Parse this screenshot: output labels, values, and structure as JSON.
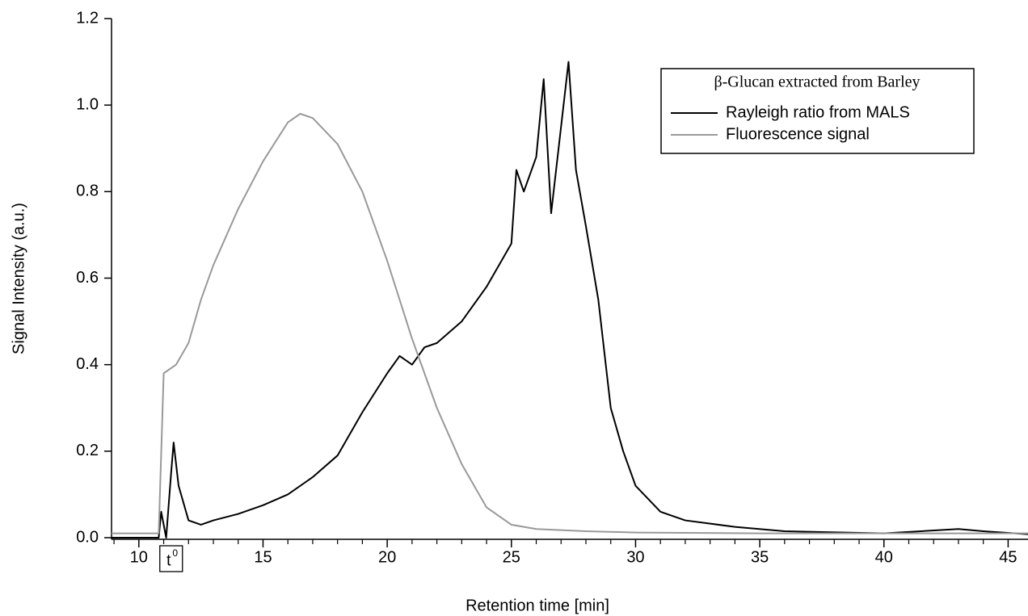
{
  "chart_data": {
    "type": "line",
    "x_label": "Retention time [min]",
    "y_label": "Signal Intensity (a.u.)",
    "legend_title": "β-Glucan extracted from Barley",
    "legend_position": "upper-right",
    "xlim": [
      8.9,
      45.8
    ],
    "ylim": [
      0,
      1.2
    ],
    "xticks": [
      10,
      15,
      20,
      25,
      30,
      35,
      40,
      45
    ],
    "xminorticks": [
      9,
      11,
      12,
      13,
      14,
      16,
      17,
      18,
      19,
      21,
      22,
      23,
      24,
      26,
      27,
      28,
      29,
      31,
      32,
      33,
      34,
      36,
      37,
      38,
      39,
      41,
      42,
      43,
      44
    ],
    "yticks": [
      {
        "value": 0,
        "label": "0.0"
      },
      0.2,
      0.4,
      0.6,
      0.8,
      {
        "value": 1,
        "label": "1.0"
      },
      1.2
    ],
    "annotation": {
      "text": "t",
      "superscript": "0",
      "x": 11.3
    },
    "series": [
      {
        "name": "Rayleigh ratio from MALS",
        "color": "#000000",
        "x": [
          8.9,
          10,
          10.8,
          10.9,
          11.1,
          11.3,
          11.4,
          11.6,
          12,
          12.5,
          13,
          14,
          15,
          16,
          17,
          18,
          19,
          20,
          20.5,
          21,
          21.5,
          22,
          23,
          24,
          25,
          25.2,
          25.5,
          26,
          26.3,
          26.6,
          27,
          27.3,
          27.6,
          28,
          28.5,
          29,
          29.5,
          30,
          31,
          32,
          34,
          36,
          40,
          43,
          44,
          45.8
        ],
        "values": [
          0,
          0,
          0,
          0.06,
          0,
          0.15,
          0.22,
          0.12,
          0.04,
          0.03,
          0.04,
          0.055,
          0.075,
          0.1,
          0.14,
          0.19,
          0.29,
          0.38,
          0.42,
          0.4,
          0.44,
          0.45,
          0.5,
          0.58,
          0.68,
          0.85,
          0.8,
          0.88,
          1.06,
          0.75,
          0.95,
          1.1,
          0.85,
          0.72,
          0.55,
          0.3,
          0.2,
          0.12,
          0.06,
          0.04,
          0.025,
          0.015,
          0.01,
          0.02,
          0.015,
          0.008
        ]
      },
      {
        "name": "Fluorescence signal",
        "color": "#999999",
        "x": [
          8.9,
          10,
          10.8,
          11,
          11.5,
          12,
          12.5,
          13,
          14,
          15,
          16,
          16.5,
          17,
          18,
          19,
          20,
          21,
          22,
          23,
          24,
          25,
          26,
          28,
          30,
          35,
          40,
          45.8
        ],
        "values": [
          0.01,
          0.01,
          0.01,
          0.38,
          0.4,
          0.45,
          0.55,
          0.63,
          0.76,
          0.87,
          0.96,
          0.98,
          0.97,
          0.91,
          0.8,
          0.64,
          0.46,
          0.3,
          0.17,
          0.07,
          0.03,
          0.02,
          0.015,
          0.012,
          0.01,
          0.01,
          0.01
        ]
      }
    ]
  }
}
